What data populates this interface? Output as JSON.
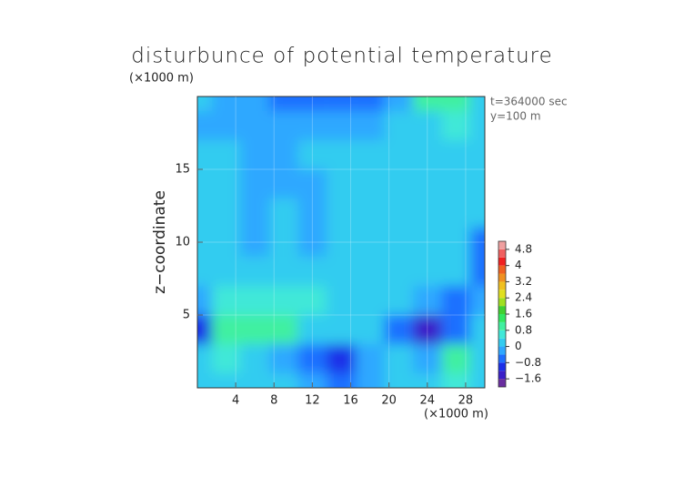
{
  "chart_data": {
    "type": "contour",
    "title": "disturbunce of potential temperature",
    "yunit": "(×1000 m)",
    "xunit": "(×1000 m)",
    "ylabel": "z−coordinate",
    "annotations": [
      "t=364000 sec",
      "y=100 m"
    ],
    "xlim": [
      0,
      30
    ],
    "ylim": [
      0,
      20
    ],
    "xticks": [
      4,
      8,
      12,
      16,
      20,
      24,
      28
    ],
    "yticks": [
      5,
      10,
      15
    ],
    "x": [
      0,
      3,
      6,
      9,
      12,
      15,
      18,
      21,
      24,
      27,
      30
    ],
    "y": [
      20,
      18,
      16,
      14,
      12,
      10,
      8,
      6,
      4,
      2,
      0
    ],
    "values": [
      [
        0.0,
        -0.4,
        -0.3,
        -0.6,
        -0.7,
        -0.6,
        -0.5,
        -0.3,
        1.0,
        0.8,
        0.2
      ],
      [
        -0.3,
        -0.2,
        -0.3,
        -0.4,
        -0.3,
        -0.2,
        -0.1,
        0.2,
        0.2,
        0.4,
        0.1
      ],
      [
        0.2,
        0.1,
        -0.4,
        -0.4,
        0.2,
        0.2,
        0.2,
        0.2,
        0.2,
        0.2,
        0.2
      ],
      [
        0.2,
        0.2,
        -0.4,
        -0.2,
        -0.4,
        0.2,
        0.2,
        0.2,
        0.2,
        0.2,
        0.2
      ],
      [
        0.2,
        0.1,
        -0.3,
        0.2,
        -0.3,
        0.1,
        0.2,
        0.2,
        0.2,
        0.2,
        0.1
      ],
      [
        0.2,
        0.1,
        -0.2,
        0.2,
        -0.3,
        0.1,
        0.2,
        0.2,
        0.2,
        0.1,
        -0.5
      ],
      [
        0.1,
        0.2,
        0.2,
        0.2,
        0.2,
        0.2,
        0.2,
        0.2,
        0.1,
        0.0,
        -0.5
      ],
      [
        -0.2,
        0.6,
        0.7,
        0.7,
        0.5,
        0.3,
        0.2,
        0.0,
        -0.4,
        -0.6,
        -0.3
      ],
      [
        -1.0,
        0.9,
        0.9,
        0.8,
        0.3,
        0.1,
        0.0,
        -0.7,
        -1.4,
        -0.8,
        0.3
      ],
      [
        0.0,
        0.6,
        0.2,
        -0.3,
        -0.5,
        -1.0,
        -0.4,
        0.0,
        -0.3,
        0.8,
        0.2
      ],
      [
        0.2,
        0.3,
        0.2,
        0.0,
        -0.2,
        -0.6,
        -0.3,
        0.1,
        0.2,
        0.4,
        0.1
      ]
    ],
    "colorbar": {
      "levels": [
        -2.0,
        -1.6,
        -1.2,
        -0.8,
        -0.4,
        0,
        0.4,
        0.8,
        1.2,
        1.6,
        2.0,
        2.4,
        2.8,
        3.2,
        3.6,
        4.0,
        4.4,
        4.8,
        5.2
      ],
      "colors": [
        "#6a2ea0",
        "#3a1fc8",
        "#1a2ee8",
        "#1f6fff",
        "#2fa8ff",
        "#33ccf0",
        "#40e8d8",
        "#40f0a0",
        "#30e860",
        "#40d030",
        "#a0e020",
        "#e0e020",
        "#f0c020",
        "#f09020",
        "#f06020",
        "#f02020",
        "#f06060",
        "#f0a0a0"
      ],
      "ticks": [
        4.8,
        4,
        3.2,
        2.4,
        1.6,
        0.8,
        0,
        {
          "value": -0.8,
          "label": "−0.8"
        },
        {
          "value": -1.6,
          "label": "−1.6"
        }
      ]
    }
  }
}
